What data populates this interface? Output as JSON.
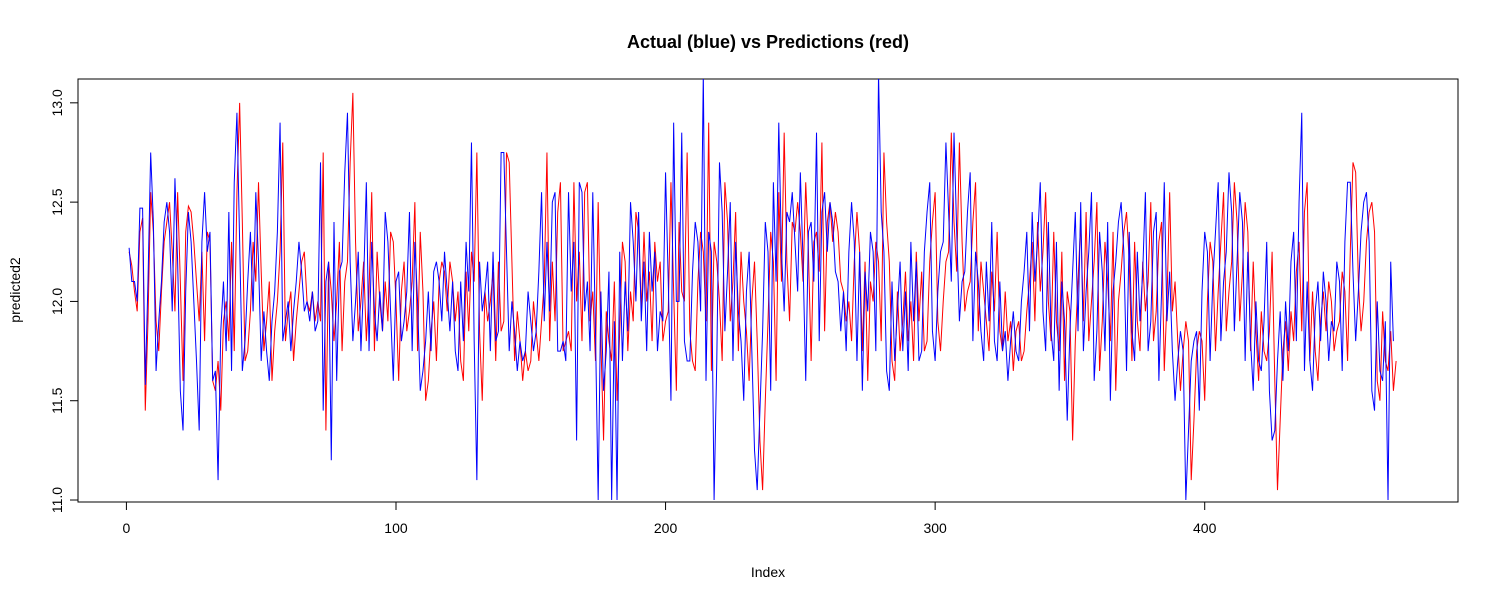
{
  "chart_data": {
    "type": "line",
    "title": "Actual (blue) vs Predictions (red)",
    "xlabel": "Index",
    "ylabel": "predicted2",
    "xlim": [
      1,
      475
    ],
    "ylim": [
      11.0,
      13.1
    ],
    "xticks": [
      0,
      100,
      200,
      300,
      400
    ],
    "yticks": [
      11.0,
      11.5,
      12.0,
      12.5,
      13.0
    ],
    "xtick_labels": [
      "0",
      "100",
      "200",
      "300",
      "400"
    ],
    "ytick_labels": [
      "11.0",
      "11.5",
      "12.0",
      "12.5",
      "13.0"
    ],
    "grid": false,
    "legend": "none",
    "series": [
      {
        "color": "#ff0000",
        "x_start": 1,
        "x_step": 1,
        "values": [
          12.25,
          12.18,
          12.05,
          11.95,
          12.35,
          12.42,
          11.45,
          11.9,
          12.55,
          12.35,
          11.9,
          11.75,
          12.05,
          12.3,
          12.4,
          12.5,
          12.25,
          11.95,
          12.55,
          12.1,
          11.6,
          12.35,
          12.48,
          12.45,
          12.3,
          12.1,
          11.9,
          12.25,
          11.8,
          12.35,
          12.3,
          11.6,
          11.55,
          11.7,
          11.45,
          11.9,
          12.0,
          11.8,
          12.3,
          11.75,
          12.55,
          13.0,
          12.4,
          11.7,
          11.75,
          11.95,
          12.3,
          12.1,
          12.6,
          12.15,
          11.75,
          11.9,
          12.1,
          11.6,
          11.85,
          12.0,
          12.25,
          12.8,
          11.8,
          11.95,
          12.05,
          11.7,
          11.9,
          12.05,
          12.2,
          12.25,
          12.0,
          11.95,
          12.05,
          11.9,
          12.0,
          11.9,
          12.75,
          11.35,
          12.2,
          12.05,
          11.8,
          12.0,
          12.3,
          11.75,
          12.1,
          12.2,
          12.7,
          13.05,
          12.3,
          11.85,
          12.0,
          12.2,
          11.8,
          12.05,
          12.55,
          11.75,
          12.25,
          12.0,
          11.85,
          12.1,
          11.9,
          12.35,
          12.3,
          12.0,
          11.6,
          12.05,
          12.2,
          11.85,
          11.95,
          12.1,
          12.5,
          11.75,
          12.35,
          12.05,
          11.5,
          11.6,
          11.85,
          12.0,
          11.7,
          12.1,
          12.2,
          12.15,
          11.95,
          12.2,
          12.1,
          11.9,
          12.05,
          11.7,
          11.6,
          12.15,
          11.85,
          12.25,
          12.1,
          12.75,
          11.85,
          11.5,
          12.05,
          11.9,
          12.0,
          12.15,
          11.7,
          12.2,
          11.85,
          11.9,
          12.75,
          12.7,
          12.2,
          11.7,
          11.95,
          11.8,
          11.6,
          11.75,
          11.65,
          11.7,
          12.0,
          11.85,
          11.7,
          11.9,
          12.1,
          12.75,
          11.8,
          12.2,
          11.9,
          12.45,
          12.6,
          11.75,
          11.8,
          11.85,
          11.75,
          12.6,
          12.0,
          12.25,
          11.8,
          12.55,
          12.6,
          11.9,
          12.05,
          11.7,
          12.5,
          11.8,
          11.3,
          11.95,
          11.8,
          11.7,
          12.1,
          11.5,
          11.85,
          12.3,
          12.2,
          11.75,
          12.05,
          11.9,
          12.45,
          12.35,
          11.95,
          12.35,
          12.0,
          12.15,
          11.8,
          12.3,
          12.1,
          12.2,
          11.8,
          11.9,
          11.95,
          12.6,
          12.05,
          11.55,
          12.4,
          12.05,
          12.0,
          12.75,
          11.85,
          11.7,
          11.65,
          12.1,
          12.35,
          12.25,
          11.9,
          12.9,
          11.65,
          12.3,
          12.2,
          12.0,
          11.7,
          12.6,
          12.4,
          11.9,
          12.1,
          12.45,
          11.75,
          12.25,
          12.0,
          11.85,
          11.6,
          12.0,
          12.2,
          11.8,
          11.3,
          11.05,
          11.5,
          11.9,
          12.35,
          12.2,
          11.6,
          12.55,
          12.1,
          12.85,
          12.2,
          11.9,
          12.4,
          12.35,
          12.5,
          12.35,
          12.1,
          12.6,
          12.25,
          11.7,
          12.3,
          12.35,
          12.15,
          12.8,
          11.85,
          12.4,
          12.5,
          12.3,
          12.45,
          12.35,
          12.1,
          12.05,
          11.9,
          12.0,
          11.8,
          12.2,
          12.45,
          12.25,
          11.75,
          12.2,
          11.6,
          12.1,
          12.0,
          12.3,
          12.2,
          11.8,
          12.75,
          12.4,
          12.2,
          11.7,
          11.6,
          12.05,
          11.75,
          11.9,
          12.15,
          11.8,
          12.0,
          11.7,
          12.25,
          11.9,
          12.15,
          11.75,
          11.8,
          12.2,
          12.4,
          12.55,
          11.9,
          11.75,
          12.0,
          12.2,
          12.25,
          12.85,
          12.4,
          12.15,
          12.8,
          12.3,
          11.95,
          12.05,
          12.1,
          12.4,
          12.6,
          11.85,
          12.2,
          12.05,
          11.9,
          11.75,
          12.15,
          11.95,
          12.35,
          11.85,
          11.75,
          12.05,
          11.8,
          11.9,
          11.65,
          11.85,
          11.9,
          11.7,
          11.75,
          11.95,
          12.1,
          12.3,
          11.9,
          12.4,
          12.05,
          12.25,
          12.55,
          12.0,
          11.8,
          12.35,
          11.9,
          11.75,
          12.25,
          11.6,
          12.05,
          11.95,
          11.3,
          11.8,
          12.1,
          12.4,
          11.9,
          12.45,
          11.8,
          12.0,
          12.2,
          12.5,
          11.65,
          11.9,
          12.3,
          12.1,
          11.8,
          12.35,
          11.55,
          12.0,
          12.15,
          12.35,
          12.45,
          12.2,
          11.7,
          12.3,
          11.9,
          11.75,
          12.2,
          11.95,
          12.1,
          12.5,
          11.8,
          11.95,
          12.3,
          12.4,
          11.65,
          12.0,
          12.55,
          11.95,
          12.1,
          11.8,
          11.55,
          11.75,
          11.9,
          11.8,
          11.1,
          11.4,
          11.75,
          11.85,
          11.8,
          11.5,
          12.0,
          12.3,
          12.2,
          11.75,
          12.05,
          12.3,
          12.55,
          11.85,
          12.05,
          12.2,
          12.6,
          12.4,
          11.9,
          12.15,
          12.5,
          12.35,
          11.75,
          12.2,
          11.85,
          11.6,
          11.95,
          11.75,
          11.7,
          11.85,
          12.25,
          11.6,
          11.05,
          11.4,
          11.75,
          11.9,
          11.65,
          11.95,
          11.8,
          12.15,
          12.3,
          11.85,
          12.45,
          12.6,
          11.7,
          12.05,
          11.75,
          11.6,
          11.9,
          12.05,
          11.85,
          12.1,
          12.0,
          11.75,
          11.85,
          11.9,
          12.15,
          12.05,
          11.7,
          12.25,
          12.7,
          12.65,
          12.1,
          11.85,
          12.0,
          12.3,
          12.45,
          12.5,
          12.35,
          11.6,
          11.5,
          11.95,
          11.7,
          11.65,
          11.85,
          11.55,
          11.7
        ]
      },
      {
        "color": "#0000ff",
        "x_start": 1,
        "x_step": 1,
        "values": [
          12.27,
          12.1,
          12.1,
          12.0,
          12.47,
          12.47,
          11.58,
          12.1,
          12.75,
          12.4,
          11.65,
          11.9,
          12.1,
          12.4,
          12.5,
          12.35,
          11.95,
          12.62,
          12.2,
          11.55,
          11.35,
          12.05,
          12.45,
          12.3,
          12.0,
          11.7,
          11.35,
          12.3,
          12.55,
          12.25,
          12.35,
          11.6,
          11.65,
          11.1,
          11.85,
          12.1,
          11.75,
          12.45,
          11.65,
          12.6,
          12.95,
          12.3,
          11.65,
          11.8,
          12.1,
          12.35,
          11.95,
          12.55,
          12.2,
          11.7,
          11.95,
          11.75,
          11.6,
          11.9,
          12.05,
          12.35,
          12.9,
          11.8,
          11.9,
          12.0,
          11.75,
          11.95,
          12.1,
          12.3,
          12.15,
          11.95,
          12.0,
          11.9,
          12.05,
          11.85,
          11.9,
          12.7,
          11.45,
          12.1,
          12.2,
          11.2,
          12.4,
          11.6,
          12.15,
          12.2,
          12.65,
          12.95,
          12.2,
          11.8,
          12.0,
          12.25,
          11.75,
          12.1,
          12.6,
          11.75,
          12.3,
          11.95,
          11.8,
          12.05,
          11.85,
          12.45,
          12.3,
          11.95,
          11.6,
          12.1,
          12.15,
          11.8,
          11.9,
          12.05,
          12.45,
          11.75,
          12.3,
          12.0,
          11.55,
          11.65,
          11.8,
          12.05,
          11.75,
          12.15,
          12.2,
          12.1,
          11.9,
          12.25,
          12.05,
          11.85,
          12.1,
          11.75,
          11.65,
          12.1,
          11.8,
          12.3,
          12.05,
          12.8,
          11.8,
          11.1,
          12.2,
          11.95,
          12.05,
          12.2,
          11.75,
          12.25,
          11.8,
          11.85,
          12.75,
          12.75,
          12.25,
          11.75,
          12.0,
          11.85,
          11.65,
          11.8,
          11.7,
          11.75,
          12.05,
          11.9,
          11.75,
          11.85,
          12.15,
          12.55,
          11.9,
          12.3,
          11.95,
          12.5,
          12.55,
          11.75,
          11.75,
          11.8,
          11.7,
          12.55,
          12.05,
          12.3,
          11.3,
          12.6,
          12.55,
          11.95,
          12.1,
          11.75,
          12.55,
          11.85,
          11.0,
          12.05,
          11.55,
          11.75,
          12.15,
          11.0,
          11.9,
          11.0,
          12.25,
          11.7,
          12.1,
          11.85,
          12.5,
          12.3,
          12.0,
          12.45,
          11.9,
          12.2,
          11.75,
          12.35,
          12.05,
          12.25,
          11.75,
          11.95,
          11.9,
          12.65,
          12.1,
          11.5,
          12.9,
          12.0,
          12.0,
          12.85,
          11.8,
          11.7,
          11.7,
          12.15,
          12.4,
          12.3,
          11.95,
          13.15,
          11.6,
          12.35,
          12.25,
          11.0,
          11.7,
          12.7,
          12.45,
          11.85,
          12.15,
          12.5,
          11.7,
          12.3,
          11.95,
          11.8,
          11.5,
          12.05,
          12.25,
          11.75,
          11.25,
          11.05,
          11.45,
          11.85,
          12.4,
          12.25,
          11.55,
          12.6,
          12.1,
          12.9,
          12.25,
          11.95,
          12.45,
          12.4,
          12.55,
          12.3,
          12.05,
          12.65,
          12.2,
          11.6,
          12.35,
          12.4,
          12.1,
          12.85,
          11.8,
          12.45,
          12.55,
          12.25,
          12.5,
          12.4,
          12.15,
          12.1,
          11.85,
          12.05,
          11.75,
          12.25,
          12.5,
          12.3,
          11.7,
          12.25,
          11.55,
          12.15,
          11.95,
          12.35,
          12.25,
          11.75,
          13.15,
          12.45,
          12.25,
          11.65,
          11.55,
          12.1,
          11.7,
          11.95,
          12.2,
          11.75,
          12.05,
          11.65,
          12.3,
          11.9,
          12.2,
          11.7,
          11.75,
          12.25,
          12.45,
          12.6,
          11.85,
          11.7,
          12.05,
          12.25,
          12.3,
          12.8,
          12.45,
          12.1,
          12.85,
          12.35,
          11.9,
          12.1,
          12.15,
          12.45,
          12.65,
          11.8,
          12.25,
          12.1,
          11.85,
          11.7,
          12.2,
          11.9,
          12.4,
          11.8,
          11.7,
          12.1,
          11.75,
          11.85,
          11.6,
          11.8,
          11.95,
          11.75,
          11.7,
          12.0,
          12.15,
          12.35,
          11.85,
          12.45,
          12.1,
          12.3,
          12.6,
          11.95,
          11.75,
          12.4,
          11.85,
          11.7,
          12.3,
          11.55,
          12.1,
          11.9,
          11.4,
          11.85,
          12.15,
          12.45,
          11.85,
          12.5,
          11.75,
          12.05,
          12.25,
          12.55,
          11.6,
          11.85,
          12.35,
          12.15,
          11.75,
          12.4,
          11.5,
          12.05,
          12.2,
          12.4,
          12.5,
          12.25,
          11.65,
          12.35,
          11.85,
          11.7,
          12.25,
          11.9,
          12.15,
          12.55,
          11.75,
          11.9,
          12.35,
          12.45,
          11.6,
          12.05,
          12.6,
          11.9,
          12.15,
          11.75,
          11.5,
          11.7,
          11.85,
          11.75,
          11.0,
          11.35,
          11.7,
          11.8,
          11.85,
          11.45,
          12.05,
          12.35,
          12.25,
          11.7,
          12.1,
          12.35,
          12.6,
          11.8,
          12.1,
          12.25,
          12.65,
          12.45,
          11.85,
          12.2,
          12.55,
          12.4,
          11.7,
          12.25,
          11.8,
          11.55,
          12.0,
          11.7,
          11.65,
          11.9,
          12.3,
          11.55,
          11.3,
          11.35,
          11.7,
          11.95,
          11.6,
          12.0,
          11.75,
          12.2,
          12.35,
          11.8,
          12.5,
          12.95,
          11.65,
          12.1,
          11.7,
          11.55,
          11.95,
          12.1,
          11.8,
          12.15,
          12.0,
          11.7,
          11.9,
          11.85,
          12.2,
          12.1,
          11.65,
          12.3,
          12.6,
          12.6,
          12.15,
          11.8,
          12.05,
          12.35,
          12.5,
          12.55,
          12.3,
          11.55,
          11.45,
          12.0,
          11.65,
          11.6,
          11.9,
          11.0,
          12.2,
          11.8
        ]
      }
    ]
  }
}
